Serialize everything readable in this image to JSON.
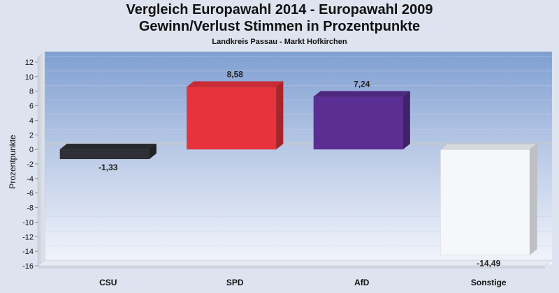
{
  "header": {
    "title": "Vergleich Europawahl 2014 - Europawahl 2009",
    "subtitle": "Gewinn/Verlust Stimmen in Prozentpunkte",
    "caption": "Landkreis Passau - Markt Hofkirchen"
  },
  "colors": {
    "CSU": "#2e3035",
    "SPD": "#e8323c",
    "AfD": "#5b2e93",
    "Sonstige": "#f6f7fb"
  },
  "chart_data": {
    "type": "bar",
    "title": "Vergleich Europawahl 2014 - Europawahl 2009",
    "subtitle": "Gewinn/Verlust Stimmen in Prozentpunkte",
    "caption": "Landkreis Passau - Markt Hofkirchen",
    "ylabel": "Prozentpunkte",
    "xlabel": "",
    "categories": [
      "CSU",
      "SPD",
      "AfD",
      "Sonstige"
    ],
    "values": [
      -1.33,
      8.58,
      7.24,
      -14.49
    ],
    "value_labels": [
      "-1,33",
      "8,58",
      "7,24",
      "-14,49"
    ],
    "ylim": [
      -16,
      12
    ],
    "yticks": [
      12,
      10,
      8,
      6,
      4,
      2,
      0,
      -2,
      -4,
      -6,
      -8,
      -10,
      -12,
      -14,
      -16
    ],
    "grid": true,
    "legend": "none"
  }
}
